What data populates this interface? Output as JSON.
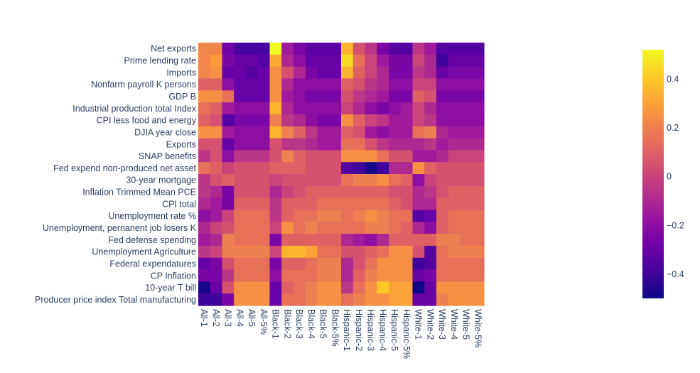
{
  "colors": {
    "colorscale": [
      "#0d0887",
      "#46039f",
      "#7201a8",
      "#9c179e",
      "#bd3786",
      "#d8576b",
      "#ed7953",
      "#fb9f3a",
      "#fdca26",
      "#f0f921"
    ],
    "text": "#2a3f5f"
  },
  "chart_data": {
    "type": "heatmap",
    "title": "",
    "xlabel": "",
    "ylabel": "",
    "x": [
      "All-1",
      "All-2",
      "All-3",
      "All-4",
      "All-5",
      "All-5%",
      "Black-1",
      "Black-2",
      "Black-3",
      "Black-4",
      "Black-5",
      "Black-5%",
      "Hispanic-1",
      "Hispanic-2",
      "Hispanic-3",
      "Hispanic-4",
      "Hispanic-5",
      "Hispanic-5%",
      "White-1",
      "White-2",
      "White-3",
      "White-4",
      "White-5",
      "White-5%"
    ],
    "x_tick_labels": [
      "All-1",
      "All-2",
      "All-3",
      "All-4",
      "All-5",
      "All-5%",
      "Black-1",
      "Black-2",
      "Black-3",
      "Black-4",
      "Black-5",
      "Black-5%",
      "Hispanic-1",
      "Hispanic-2",
      "Hispanic-3",
      "Hispanic-4",
      "Hispanic-5",
      "Hispanic-5%",
      "White-1",
      "White-2",
      "White-3",
      "White-4",
      "White-5",
      "White-5%"
    ],
    "y": [
      "Net exports",
      "Prime lending rate",
      "Imports",
      "Nonfarm payroll K persons",
      "GDP B",
      "Industrial production total Index",
      "CPI less food and energy",
      "DJIA year close",
      "Exports",
      "SNAP benefits",
      "Fed expend non-produced net asset",
      "30-year mortgage",
      "Inflation Trimmed Mean PCE",
      "CPI total",
      "Unemployment rate %",
      "Unemployment, pernanent job losers K",
      "Fed defense spending",
      "Unemployment Agriculture",
      "Federal expendatures",
      "CP Inflation",
      "10-year T bill",
      "Producer price index Total manufacturing"
    ],
    "zmin": -0.5,
    "zmax": 0.52,
    "colorbar_ticks": [
      0.4,
      0.2,
      0,
      -0.2,
      -0.4
    ],
    "colorbar_tick_labels": [
      "0.4",
      "0.2",
      "0",
      "−0.2",
      "−0.4"
    ],
    "z": [
      [
        0.22,
        0.22,
        -0.28,
        -0.38,
        -0.38,
        -0.38,
        0.52,
        -0.15,
        -0.25,
        -0.33,
        -0.33,
        -0.33,
        0.35,
        0.05,
        -0.05,
        -0.25,
        -0.35,
        -0.35,
        -0.05,
        -0.15,
        -0.35,
        -0.35,
        -0.35,
        -0.35
      ],
      [
        0.22,
        0.28,
        -0.25,
        -0.3,
        -0.3,
        -0.35,
        0.32,
        -0.1,
        -0.2,
        -0.3,
        -0.3,
        -0.3,
        0.45,
        0.15,
        0.0,
        -0.15,
        -0.25,
        -0.25,
        0.0,
        -0.1,
        -0.4,
        -0.3,
        -0.3,
        -0.3
      ],
      [
        0.22,
        0.25,
        -0.3,
        -0.3,
        -0.35,
        -0.3,
        0.25,
        0.05,
        -0.1,
        -0.25,
        -0.3,
        -0.3,
        0.35,
        0.1,
        0.0,
        -0.1,
        -0.25,
        -0.25,
        -0.05,
        -0.1,
        -0.3,
        -0.25,
        -0.25,
        -0.25
      ],
      [
        0.1,
        0.1,
        -0.2,
        -0.3,
        -0.3,
        -0.3,
        0.25,
        -0.1,
        -0.2,
        -0.2,
        -0.2,
        -0.2,
        0.1,
        0.05,
        -0.05,
        -0.1,
        -0.2,
        -0.2,
        0.0,
        0.0,
        -0.2,
        -0.2,
        -0.2,
        -0.2
      ],
      [
        0.25,
        0.25,
        0.15,
        -0.3,
        -0.3,
        -0.3,
        0.25,
        -0.15,
        -0.2,
        -0.25,
        -0.25,
        -0.25,
        0.05,
        -0.05,
        -0.1,
        -0.15,
        -0.25,
        -0.25,
        0.1,
        0.05,
        -0.25,
        -0.25,
        -0.25,
        -0.25
      ],
      [
        0.15,
        0.1,
        -0.15,
        -0.2,
        -0.2,
        -0.2,
        0.35,
        -0.1,
        -0.2,
        -0.2,
        -0.2,
        -0.2,
        0.0,
        -0.1,
        -0.2,
        -0.25,
        -0.2,
        -0.15,
        0.0,
        -0.1,
        -0.2,
        -0.2,
        -0.2,
        -0.2
      ],
      [
        0.1,
        0.05,
        -0.35,
        -0.25,
        -0.25,
        -0.25,
        0.2,
        -0.05,
        -0.1,
        -0.2,
        -0.25,
        -0.25,
        0.25,
        0.1,
        0.0,
        -0.05,
        -0.15,
        -0.15,
        0.0,
        -0.05,
        -0.2,
        -0.2,
        -0.2,
        -0.2
      ],
      [
        0.25,
        0.25,
        -0.15,
        -0.2,
        -0.2,
        -0.2,
        0.35,
        0.2,
        0.1,
        -0.05,
        -0.15,
        -0.15,
        0.1,
        0.05,
        -0.15,
        -0.2,
        -0.15,
        -0.15,
        0.15,
        0.2,
        -0.1,
        -0.15,
        -0.15,
        -0.15
      ],
      [
        0.05,
        0.05,
        -0.3,
        -0.2,
        -0.2,
        -0.2,
        0.05,
        -0.05,
        -0.05,
        -0.1,
        -0.15,
        -0.15,
        0.15,
        0.15,
        0.05,
        -0.05,
        -0.1,
        -0.1,
        -0.1,
        -0.05,
        -0.15,
        -0.1,
        -0.1,
        -0.1
      ],
      [
        -0.05,
        0.05,
        -0.2,
        -0.05,
        -0.05,
        -0.05,
        0.05,
        0.2,
        0.1,
        0.05,
        0.05,
        0.05,
        0.25,
        0.25,
        0.25,
        0.15,
        0.05,
        0.05,
        -0.15,
        -0.15,
        -0.1,
        0.0,
        0.0,
        0.0
      ],
      [
        0.15,
        0.1,
        0.0,
        0.05,
        0.05,
        0.05,
        0.1,
        0.1,
        0.1,
        0.05,
        0.05,
        0.05,
        -0.35,
        -0.4,
        -0.48,
        -0.4,
        -0.1,
        -0.1,
        0.25,
        0.1,
        0.05,
        0.05,
        0.05,
        0.05
      ],
      [
        -0.05,
        0.05,
        0.1,
        0.05,
        0.05,
        0.05,
        0.0,
        0.05,
        0.05,
        0.05,
        0.05,
        0.05,
        0.15,
        0.2,
        0.2,
        0.25,
        0.15,
        0.1,
        -0.2,
        0.0,
        0.05,
        0.05,
        0.05,
        0.05
      ],
      [
        -0.05,
        -0.1,
        -0.25,
        0.05,
        0.05,
        0.05,
        -0.1,
        0.0,
        0.05,
        0.1,
        0.1,
        0.1,
        0.1,
        0.1,
        0.1,
        0.1,
        0.05,
        0.05,
        -0.1,
        -0.05,
        0.05,
        0.1,
        0.1,
        0.1
      ],
      [
        -0.1,
        -0.15,
        -0.25,
        0.1,
        0.1,
        0.1,
        -0.05,
        0.1,
        0.1,
        0.1,
        0.15,
        0.15,
        0.15,
        0.15,
        0.15,
        0.15,
        0.1,
        0.05,
        -0.1,
        -0.1,
        0.1,
        0.1,
        0.1,
        0.1
      ],
      [
        -0.2,
        -0.15,
        0.0,
        0.15,
        0.15,
        0.15,
        -0.05,
        0.1,
        0.15,
        0.15,
        0.2,
        0.2,
        0.15,
        0.2,
        0.25,
        0.2,
        0.15,
        0.15,
        -0.35,
        -0.3,
        0.1,
        0.15,
        0.15,
        0.15
      ],
      [
        -0.1,
        0.0,
        0.05,
        0.15,
        0.15,
        0.15,
        0.0,
        0.25,
        0.15,
        0.2,
        0.15,
        0.15,
        0.15,
        0.15,
        0.2,
        0.2,
        0.15,
        0.1,
        -0.1,
        -0.2,
        0.1,
        0.15,
        0.15,
        0.15
      ],
      [
        -0.15,
        -0.1,
        0.2,
        0.15,
        0.15,
        0.15,
        -0.25,
        0.1,
        0.1,
        0.1,
        0.1,
        0.1,
        -0.1,
        -0.15,
        -0.2,
        -0.1,
        0.1,
        0.1,
        0.1,
        0.1,
        0.2,
        0.2,
        0.15,
        0.15
      ],
      [
        -0.05,
        0.0,
        0.2,
        0.2,
        0.2,
        0.2,
        0.0,
        0.35,
        0.35,
        0.3,
        0.15,
        0.15,
        0.05,
        0.05,
        0.1,
        0.15,
        0.25,
        0.25,
        0.05,
        -0.35,
        0.15,
        0.2,
        0.2,
        0.2
      ],
      [
        -0.3,
        -0.25,
        0.05,
        0.15,
        0.15,
        0.15,
        -0.25,
        0.1,
        0.1,
        0.15,
        0.2,
        0.2,
        -0.1,
        0.05,
        0.15,
        0.25,
        0.25,
        0.25,
        -0.4,
        -0.35,
        0.15,
        0.15,
        0.15,
        0.15
      ],
      [
        -0.25,
        -0.25,
        -0.05,
        0.15,
        0.15,
        0.15,
        -0.2,
        0.15,
        0.15,
        0.15,
        0.2,
        0.2,
        -0.1,
        0.1,
        0.2,
        0.25,
        0.25,
        0.25,
        -0.3,
        -0.25,
        0.15,
        0.15,
        0.15,
        0.15
      ],
      [
        -0.48,
        -0.3,
        0.05,
        0.25,
        0.25,
        0.25,
        -0.3,
        0.1,
        0.15,
        0.2,
        0.25,
        0.25,
        -0.05,
        0.15,
        0.25,
        0.4,
        0.3,
        0.3,
        -0.5,
        -0.3,
        0.25,
        0.25,
        0.25,
        0.25
      ],
      [
        -0.4,
        -0.4,
        -0.25,
        0.25,
        0.25,
        0.25,
        -0.3,
        0.15,
        0.15,
        0.2,
        0.25,
        0.25,
        0.15,
        0.2,
        0.25,
        0.25,
        0.3,
        0.3,
        -0.3,
        -0.3,
        0.2,
        0.25,
        0.25,
        0.25
      ]
    ]
  }
}
